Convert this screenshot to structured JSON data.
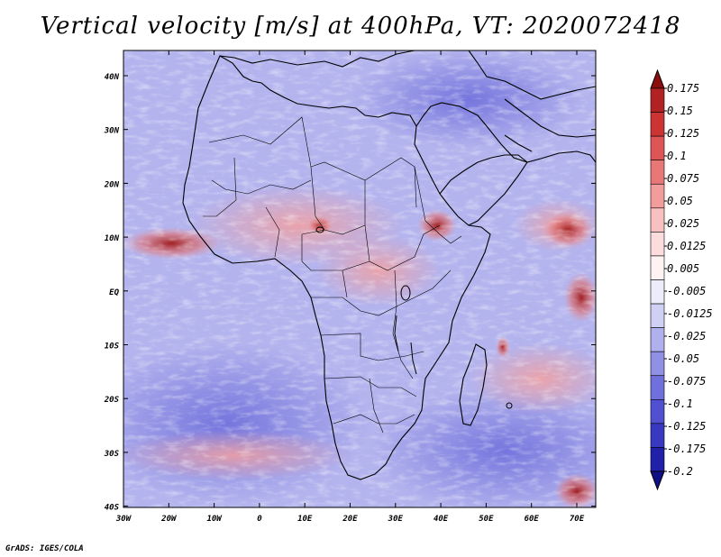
{
  "title": "Vertical velocity [m/s] at 400hPa, VT: 2020072418",
  "credit": "GrADS: IGES/COLA",
  "lat_labels": [
    "40N",
    "30N",
    "20N",
    "10N",
    "EQ",
    "10S",
    "20S",
    "30S",
    "40S"
  ],
  "lon_labels": [
    "30W",
    "20W",
    "10W",
    "0",
    "10E",
    "20E",
    "30E",
    "40E",
    "50E",
    "60E",
    "70E"
  ],
  "colorbar": {
    "labels": [
      "0.175",
      "0.15",
      "0.125",
      "0.1",
      "0.075",
      "0.05",
      "0.025",
      "0.0125",
      "0.005",
      "-0.005",
      "-0.0125",
      "-0.025",
      "-0.05",
      "-0.075",
      "-0.1",
      "-0.125",
      "-0.175",
      "-0.2"
    ],
    "colors": [
      "#8b0e0e",
      "#b22222",
      "#cc3333",
      "#dd5555",
      "#e87878",
      "#f29c9c",
      "#f8c0c0",
      "#fcdcdc",
      "#fff2f2",
      "#ececfb",
      "#d0d0f5",
      "#b0b0ee",
      "#9090e5",
      "#7070dc",
      "#5050d0",
      "#3838c0",
      "#2020a8",
      "#101085"
    ]
  }
}
